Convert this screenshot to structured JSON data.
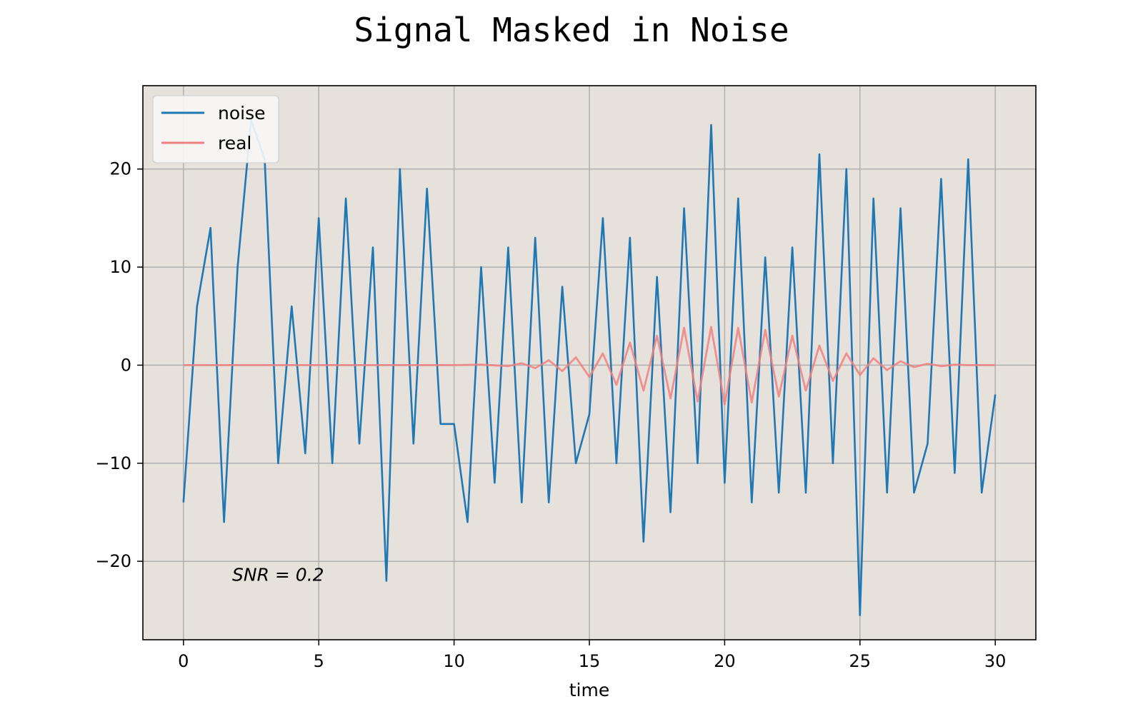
{
  "chart_data": {
    "type": "line",
    "title": "Signal Masked in Noise",
    "xlabel": "time",
    "ylabel": "",
    "xlim": [
      -1.5,
      31.5
    ],
    "ylim": [
      -28,
      28.5
    ],
    "x_ticks": [
      0,
      5,
      10,
      15,
      20,
      25,
      30
    ],
    "x_tick_labels": [
      "0",
      "5",
      "10",
      "15",
      "20",
      "25",
      "30"
    ],
    "y_ticks": [
      -20,
      -10,
      0,
      10,
      20
    ],
    "y_tick_labels": [
      "−20",
      "−10",
      "0",
      "10",
      "20"
    ],
    "grid": true,
    "legend_position": "upper-left",
    "background_color": "#e7e1db",
    "annotation": "SNR = 0.2",
    "annotation_pos": {
      "x": 1.8,
      "y": -22
    },
    "series": [
      {
        "name": "noise",
        "color": "#1f77b4",
        "x": [
          0,
          0.5,
          1,
          1.5,
          2,
          2.5,
          3,
          3.5,
          4,
          4.5,
          5,
          5.5,
          6,
          6.5,
          7,
          7.5,
          8,
          8.5,
          9,
          9.5,
          10,
          10.5,
          11,
          11.5,
          12,
          12.5,
          13,
          13.5,
          14,
          14.5,
          15,
          15.5,
          16,
          16.5,
          17,
          17.5,
          18,
          18.5,
          19,
          19.5,
          20,
          20.5,
          21,
          21.5,
          22,
          22.5,
          23,
          23.5,
          24,
          24.5,
          25,
          25.5,
          26,
          26.5,
          27,
          27.5,
          28,
          28.5,
          29,
          29.5,
          30
        ],
        "y": [
          -14,
          6,
          14,
          -16,
          10,
          25,
          21,
          -10,
          6,
          -9,
          15,
          -10,
          17,
          -8,
          12,
          -22,
          20,
          -8,
          18,
          -6,
          -6,
          -16,
          10,
          -12,
          12,
          -14,
          13,
          -14,
          8,
          -10,
          -5,
          15,
          -10,
          13,
          -18,
          9,
          -15,
          16,
          -10,
          24.5,
          -12,
          17,
          -14,
          11,
          -13,
          12,
          -13,
          21.5,
          -10,
          20,
          -25.5,
          17,
          -13,
          16,
          -13,
          -8,
          19,
          -11,
          21,
          -13,
          -3
        ]
      },
      {
        "name": "real",
        "color": "#f08080",
        "x": [
          0,
          5,
          10,
          11,
          12,
          12.5,
          13,
          13.5,
          14,
          14.5,
          15,
          15.5,
          16,
          16.5,
          17,
          17.5,
          18,
          18.5,
          19,
          19.5,
          20,
          20.5,
          21,
          21.5,
          22,
          22.5,
          23,
          23.5,
          24,
          24.5,
          25,
          25.5,
          26,
          26.5,
          27,
          27.5,
          28,
          28.5,
          29,
          30
        ],
        "y": [
          0,
          0,
          0,
          0.05,
          -0.1,
          0.2,
          -0.3,
          0.5,
          -0.6,
          0.8,
          -1.2,
          1.2,
          -2,
          2.3,
          -2.6,
          3,
          -3.4,
          3.8,
          -3.7,
          3.9,
          -4,
          3.8,
          -3.8,
          3.6,
          -3.2,
          3,
          -2.6,
          2,
          -1.6,
          1.2,
          -1,
          0.7,
          -0.5,
          0.4,
          -0.2,
          0.15,
          -0.1,
          0.05,
          0,
          0
        ]
      }
    ]
  }
}
